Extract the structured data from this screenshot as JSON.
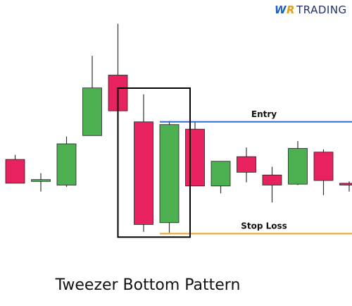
{
  "logo": {
    "w": "W",
    "r": "R",
    "text": "TRADING"
  },
  "caption": "Tweezer Bottom Pattern",
  "colors": {
    "bull": "#4caf50",
    "bear": "#e8215f",
    "entry": "#2f6bd6",
    "stop": "#f0a020",
    "box": "#000000",
    "wick": "#333333"
  },
  "chart_data": {
    "type": "candlestick",
    "title": "Tweezer Bottom Pattern",
    "xlabel": "",
    "ylabel": "",
    "grid": false,
    "ylim": [
      0,
      100
    ],
    "candles": [
      {
        "open": 51.5,
        "close": 38.5,
        "high": 54.0,
        "low": 38.5
      },
      {
        "open": 39.5,
        "close": 40.5,
        "high": 44.0,
        "low": 34.0
      },
      {
        "open": 37.5,
        "close": 60.0,
        "high": 64.0,
        "low": 36.5
      },
      {
        "open": 64.5,
        "close": 90.5,
        "high": 108.0,
        "low": 64.5
      },
      {
        "open": 97.5,
        "close": 78.0,
        "high": 125.5,
        "low": 78.0
      },
      {
        "open": 72.0,
        "close": 16.0,
        "high": 87.0,
        "low": 12.0
      },
      {
        "open": 17.0,
        "close": 70.5,
        "high": 72.5,
        "low": 11.5
      },
      {
        "open": 68.0,
        "close": 37.0,
        "high": 72.0,
        "low": 37.0
      },
      {
        "open": 37.0,
        "close": 50.5,
        "high": 50.5,
        "low": 33.0
      },
      {
        "open": 53.0,
        "close": 44.5,
        "high": 58.0,
        "low": 39.0
      },
      {
        "open": 43.0,
        "close": 37.5,
        "high": 47.5,
        "low": 28.0
      },
      {
        "open": 38.0,
        "close": 57.5,
        "high": 61.5,
        "low": 37.5
      },
      {
        "open": 55.5,
        "close": 40.0,
        "high": 57.0,
        "low": 32.0
      },
      {
        "open": 38.5,
        "close": 37.5,
        "high": 39.5,
        "low": 34.0
      }
    ],
    "levels": [
      {
        "label": "Entry",
        "value": 72.0
      },
      {
        "label": "Stop Loss",
        "value": 11.0
      }
    ],
    "pattern_candles": [
      5,
      6
    ]
  }
}
